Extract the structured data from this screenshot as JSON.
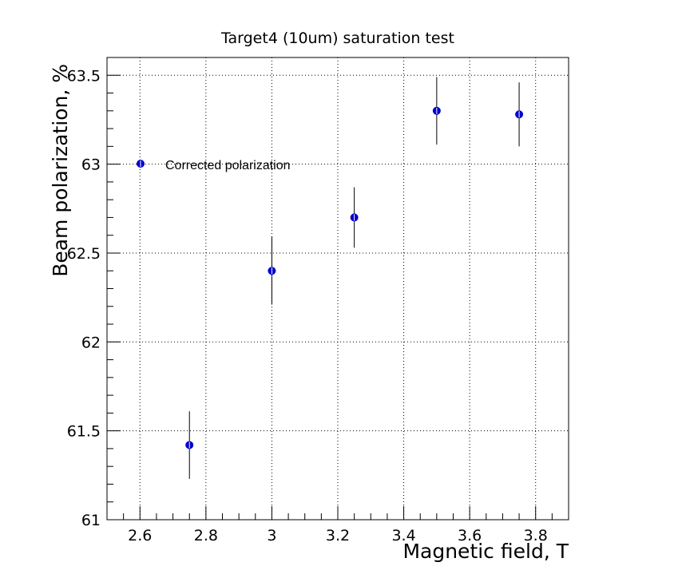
{
  "chart_data": {
    "type": "scatter",
    "title": "Target4 (10um) saturation test",
    "xlabel": "Magnetic field, T",
    "ylabel": "Beam polarization, %",
    "xlim": [
      2.5,
      3.9
    ],
    "ylim": [
      61,
      63.6
    ],
    "grid": true,
    "x_ticks": [
      2.6,
      2.8,
      3.0,
      3.2,
      3.4,
      3.6,
      3.8
    ],
    "x_tick_labels": [
      "2.6",
      "2.8",
      "3",
      "3.2",
      "3.4",
      "3.6",
      "3.8"
    ],
    "y_ticks": [
      61,
      61.5,
      62,
      62.5,
      63,
      63.5
    ],
    "y_tick_labels": [
      "61",
      "61.5",
      "62",
      "62.5",
      "63",
      "63.5"
    ],
    "legend_position": "upper-left",
    "series": [
      {
        "name": "Corrected polarization",
        "color": "#0000cc",
        "marker": "circle",
        "points": [
          {
            "x": 2.75,
            "y": 61.42,
            "yerr": 0.19
          },
          {
            "x": 3.0,
            "y": 62.4,
            "yerr": 0.19
          },
          {
            "x": 3.25,
            "y": 62.7,
            "yerr": 0.17
          },
          {
            "x": 3.5,
            "y": 63.3,
            "yerr": 0.19
          },
          {
            "x": 3.75,
            "y": 63.28,
            "yerr": 0.18
          }
        ]
      }
    ]
  }
}
